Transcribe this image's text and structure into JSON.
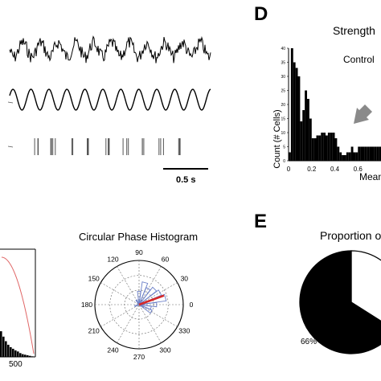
{
  "panel_d": {
    "letter": "D",
    "title": "Strength",
    "legend": "Control",
    "ylabel": "Count (# Cells)",
    "xlabel": "Mean"
  },
  "panel_e": {
    "letter": "E",
    "title": "Proportion o",
    "pct_label": "66%"
  },
  "traces": {
    "scale_label": "0.5 s"
  },
  "polar": {
    "title": "Circular Phase Histogram",
    "angle_labels": [
      "90",
      "60",
      "30",
      "0",
      "330",
      "300",
      "270",
      "240",
      "210",
      "180",
      "150",
      "120"
    ]
  },
  "colors": {
    "accent_red": "#d62828",
    "rose_blue": "#6b7fc7",
    "gray_arrow": "#8a8a8a"
  },
  "chart_data": [
    {
      "type": "bar",
      "title": "Strength",
      "xlabel": "Mean",
      "ylabel": "Count (# Cells)",
      "legend": [
        "Control"
      ],
      "x_tick_labels": [
        "0",
        "0.2",
        "0.4",
        "0.6"
      ],
      "y_tick_labels": [
        "0",
        "5",
        "10",
        "15",
        "20",
        "25",
        "30",
        "35",
        "40"
      ],
      "xlim": [
        0,
        0.8
      ],
      "ylim": [
        0,
        40
      ],
      "bin_width": 0.02,
      "bin_starts": [
        0.0,
        0.02,
        0.04,
        0.06,
        0.08,
        0.1,
        0.12,
        0.14,
        0.16,
        0.18,
        0.2,
        0.22,
        0.24,
        0.26,
        0.28,
        0.3,
        0.32,
        0.34,
        0.36,
        0.38,
        0.4,
        0.42,
        0.44,
        0.46,
        0.48,
        0.5,
        0.52,
        0.54,
        0.56,
        0.58,
        0.6,
        0.62,
        0.64,
        0.66,
        0.68,
        0.7,
        0.72,
        0.74,
        0.76,
        0.78
      ],
      "values": [
        3,
        40,
        35,
        33,
        30,
        14,
        18,
        25,
        22,
        15,
        8,
        8,
        9,
        9,
        10,
        10,
        9,
        10,
        10,
        10,
        8,
        5,
        3,
        2,
        2,
        3,
        3,
        5,
        3,
        3,
        5,
        5,
        5,
        5,
        5,
        5,
        5,
        5,
        5,
        5
      ]
    },
    {
      "type": "bar",
      "x_tick_labels": [
        "500"
      ],
      "values": [
        0.95,
        0.75,
        0.58,
        0.45,
        0.36,
        0.3,
        0.24,
        0.2,
        0.14,
        0.1,
        0.08,
        0.06,
        0.04,
        0.02
      ],
      "ylim": [
        0,
        1
      ]
    },
    {
      "type": "pie",
      "title": "Proportion o",
      "slices": [
        {
          "label": "66%",
          "value": 66,
          "color": "#000000"
        },
        {
          "label": "",
          "value": 34,
          "color": "#ffffff"
        }
      ]
    }
  ]
}
